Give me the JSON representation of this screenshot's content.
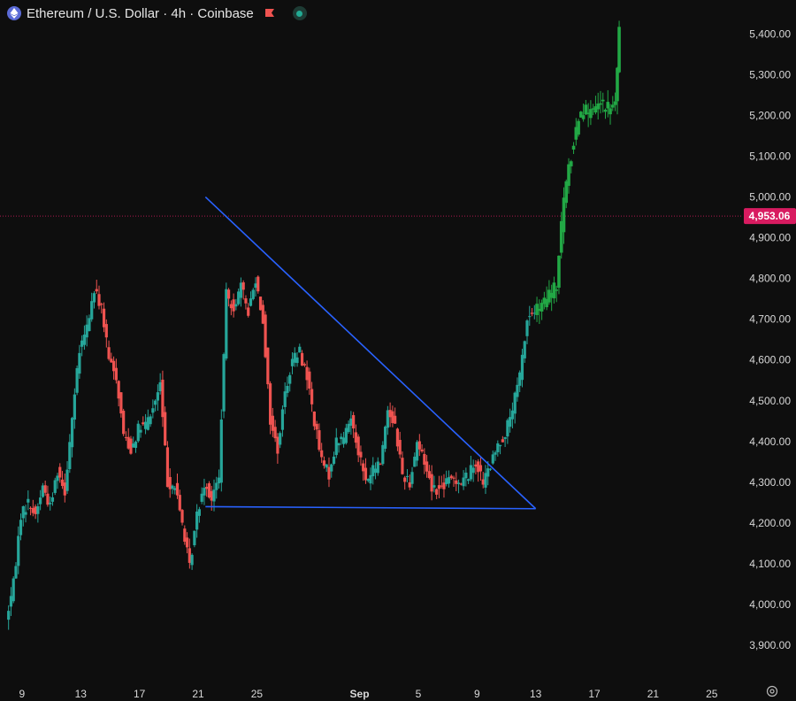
{
  "header": {
    "title": "Ethereum / U.S. Dollar · 4h · Coinbase",
    "symbol_icon": "ethereum-icon",
    "flag_icon": "red-flag-icon",
    "status_icon": "live-dot-icon"
  },
  "colors": {
    "background": "#0e0e0e",
    "up": "#26a69a",
    "down": "#ef5350",
    "projection": "#22a845",
    "trendline": "#2962ff",
    "current_price": "#d81b60"
  },
  "chart_data": {
    "type": "candlestick",
    "title": "Ethereum / U.S. Dollar · 4h · Coinbase",
    "ylim": [
      3850,
      5440
    ],
    "xlim": [
      "2025-08-07T12:00",
      "2025-09-27"
    ],
    "y_ticks": [
      "5,400.00",
      "5,300.00",
      "5,200.00",
      "5,100.00",
      "5,000.00",
      "4,900.00",
      "4,800.00",
      "4,700.00",
      "4,600.00",
      "4,500.00",
      "4,400.00",
      "4,300.00",
      "4,200.00",
      "4,100.00",
      "4,000.00",
      "3,900.00"
    ],
    "x_ticks": [
      {
        "label": "9",
        "date": "2025-08-09"
      },
      {
        "label": "13",
        "date": "2025-08-13"
      },
      {
        "label": "17",
        "date": "2025-08-17"
      },
      {
        "label": "21",
        "date": "2025-08-21"
      },
      {
        "label": "25",
        "date": "2025-08-25"
      },
      {
        "label": "Sep",
        "date": "2025-09-01"
      },
      {
        "label": "5",
        "date": "2025-09-05"
      },
      {
        "label": "9",
        "date": "2025-09-09"
      },
      {
        "label": "13",
        "date": "2025-09-13"
      },
      {
        "label": "17",
        "date": "2025-09-17"
      },
      {
        "label": "21",
        "date": "2025-09-21"
      },
      {
        "label": "25",
        "date": "2025-09-25"
      }
    ],
    "current_price": {
      "value": 4953.06,
      "label": "4,953.06"
    },
    "price_path": [
      [
        "2025-08-08T00:00",
        3960
      ],
      [
        "2025-08-08T12:00",
        4050
      ],
      [
        "2025-08-09T00:00",
        4220
      ],
      [
        "2025-08-09T12:00",
        4250
      ],
      [
        "2025-08-10T00:00",
        4220
      ],
      [
        "2025-08-10T12:00",
        4290
      ],
      [
        "2025-08-11T00:00",
        4240
      ],
      [
        "2025-08-11T12:00",
        4330
      ],
      [
        "2025-08-12T00:00",
        4280
      ],
      [
        "2025-08-12T12:00",
        4460
      ],
      [
        "2025-08-13T00:00",
        4620
      ],
      [
        "2025-08-13T12:00",
        4680
      ],
      [
        "2025-08-14T00:00",
        4770
      ],
      [
        "2025-08-14T12:00",
        4730
      ],
      [
        "2025-08-15T00:00",
        4600
      ],
      [
        "2025-08-15T12:00",
        4560
      ],
      [
        "2025-08-16T00:00",
        4420
      ],
      [
        "2025-08-16T12:00",
        4380
      ],
      [
        "2025-08-17T00:00",
        4430
      ],
      [
        "2025-08-17T12:00",
        4440
      ],
      [
        "2025-08-18T00:00",
        4480
      ],
      [
        "2025-08-18T12:00",
        4540
      ],
      [
        "2025-08-19T00:00",
        4300
      ],
      [
        "2025-08-19T12:00",
        4290
      ],
      [
        "2025-08-20T00:00",
        4200
      ],
      [
        "2025-08-20T12:00",
        4090
      ],
      [
        "2025-08-21T00:00",
        4220
      ],
      [
        "2025-08-21T12:00",
        4300
      ],
      [
        "2025-08-22T00:00",
        4260
      ],
      [
        "2025-08-22T12:00",
        4310
      ],
      [
        "2025-08-23T00:00",
        4760
      ],
      [
        "2025-08-23T12:00",
        4730
      ],
      [
        "2025-08-24T00:00",
        4780
      ],
      [
        "2025-08-24T12:00",
        4720
      ],
      [
        "2025-08-25T00:00",
        4800
      ],
      [
        "2025-08-25T12:00",
        4700
      ],
      [
        "2025-08-26T00:00",
        4450
      ],
      [
        "2025-08-26T12:00",
        4380
      ],
      [
        "2025-08-27T00:00",
        4520
      ],
      [
        "2025-08-27T12:00",
        4600
      ],
      [
        "2025-08-28T00:00",
        4620
      ],
      [
        "2025-08-28T12:00",
        4560
      ],
      [
        "2025-08-29T00:00",
        4450
      ],
      [
        "2025-08-29T12:00",
        4350
      ],
      [
        "2025-08-30T00:00",
        4320
      ],
      [
        "2025-08-30T12:00",
        4400
      ],
      [
        "2025-08-31T00:00",
        4410
      ],
      [
        "2025-08-31T12:00",
        4460
      ],
      [
        "2025-09-01T00:00",
        4380
      ],
      [
        "2025-09-01T12:00",
        4300
      ],
      [
        "2025-09-02T00:00",
        4330
      ],
      [
        "2025-09-02T12:00",
        4350
      ],
      [
        "2025-09-03T00:00",
        4480
      ],
      [
        "2025-09-03T12:00",
        4440
      ],
      [
        "2025-09-04T00:00",
        4320
      ],
      [
        "2025-09-04T12:00",
        4300
      ],
      [
        "2025-09-05T00:00",
        4400
      ],
      [
        "2025-09-05T12:00",
        4350
      ],
      [
        "2025-09-06T00:00",
        4290
      ],
      [
        "2025-09-06T12:00",
        4280
      ],
      [
        "2025-09-07T00:00",
        4300
      ],
      [
        "2025-09-07T12:00",
        4310
      ],
      [
        "2025-09-08T00:00",
        4300
      ],
      [
        "2025-09-08T12:00",
        4320
      ],
      [
        "2025-09-09T00:00",
        4350
      ],
      [
        "2025-09-09T12:00",
        4300
      ],
      [
        "2025-09-10T00:00",
        4340
      ],
      [
        "2025-09-10T12:00",
        4390
      ],
      [
        "2025-09-11T00:00",
        4420
      ],
      [
        "2025-09-11T12:00",
        4480
      ],
      [
        "2025-09-12T00:00",
        4560
      ],
      [
        "2025-09-12T12:00",
        4700
      ],
      [
        "2025-09-13T00:00",
        4720
      ]
    ],
    "projection_path": [
      [
        "2025-09-13T00:00",
        4720
      ],
      [
        "2025-09-13T12:00",
        4730
      ],
      [
        "2025-09-14T00:00",
        4760
      ],
      [
        "2025-09-14T12:00",
        4780
      ],
      [
        "2025-09-15T00:00",
        5000
      ],
      [
        "2025-09-15T12:00",
        5100
      ],
      [
        "2025-09-16T00:00",
        5200
      ],
      [
        "2025-09-16T12:00",
        5220
      ],
      [
        "2025-09-17T00:00",
        5200
      ],
      [
        "2025-09-17T12:00",
        5230
      ],
      [
        "2025-09-18T00:00",
        5210
      ],
      [
        "2025-09-18T12:00",
        5230
      ],
      [
        "2025-09-18T18:00",
        5400
      ]
    ],
    "trendlines": [
      {
        "from": [
          "2025-08-21T12:00",
          5000
        ],
        "to": [
          "2025-09-13T00:00",
          4235
        ]
      },
      {
        "from": [
          "2025-08-21T12:00",
          4240
        ],
        "to": [
          "2025-09-13T00:00",
          4235
        ]
      }
    ]
  }
}
